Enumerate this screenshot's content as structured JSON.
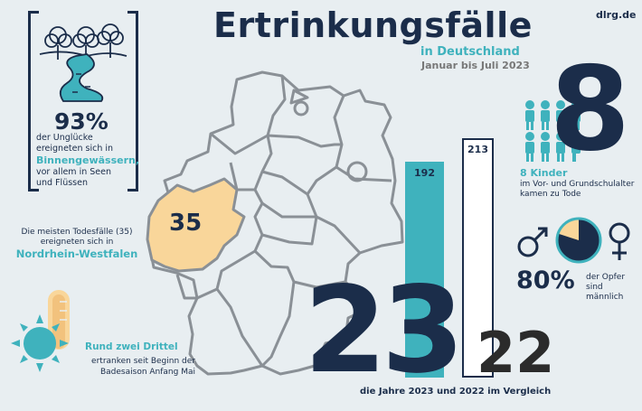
{
  "header": {
    "title": "Ertrinkungsfälle",
    "subtitle": "in Deutschland",
    "period": "Januar bis Juli 2023",
    "site": "dlrg.de"
  },
  "waters": {
    "percent": "93%",
    "text_before": "der Unglücke ereigneten sich in",
    "highlight": "Binnengewässern,",
    "text_after": "vor allem in Seen und Flüssen"
  },
  "nrw": {
    "count": "35",
    "text": "Die meisten Todesfälle (35) ereigneten sich in",
    "name": "Nordrhein-Westfalen"
  },
  "season": {
    "title": "Rund zwei Drittel",
    "text": "ertranken seit Beginn der Badesaison Anfang Mai"
  },
  "comparison": {
    "year_2023": "23",
    "year_2022": "22",
    "caption": "die Jahre 2023 und 2022 im Vergleich"
  },
  "children": {
    "count": "8",
    "title": "8 Kinder",
    "text": "im Vor- und Grundschulalter kamen zu Tode"
  },
  "gender": {
    "percent": "80%",
    "text": "der Opfer sind männlich",
    "male_share": 0.8
  },
  "chart_data": {
    "type": "bar",
    "categories": [
      "2023",
      "2022"
    ],
    "values": [
      192,
      213
    ],
    "value_labels": [
      "192",
      "213"
    ],
    "title": "",
    "xlabel": "",
    "ylabel": ""
  },
  "colors": {
    "navy": "#1b2d4a",
    "teal": "#3fb2bd",
    "nrw": "#f9d69a",
    "background": "#e8eef1"
  }
}
